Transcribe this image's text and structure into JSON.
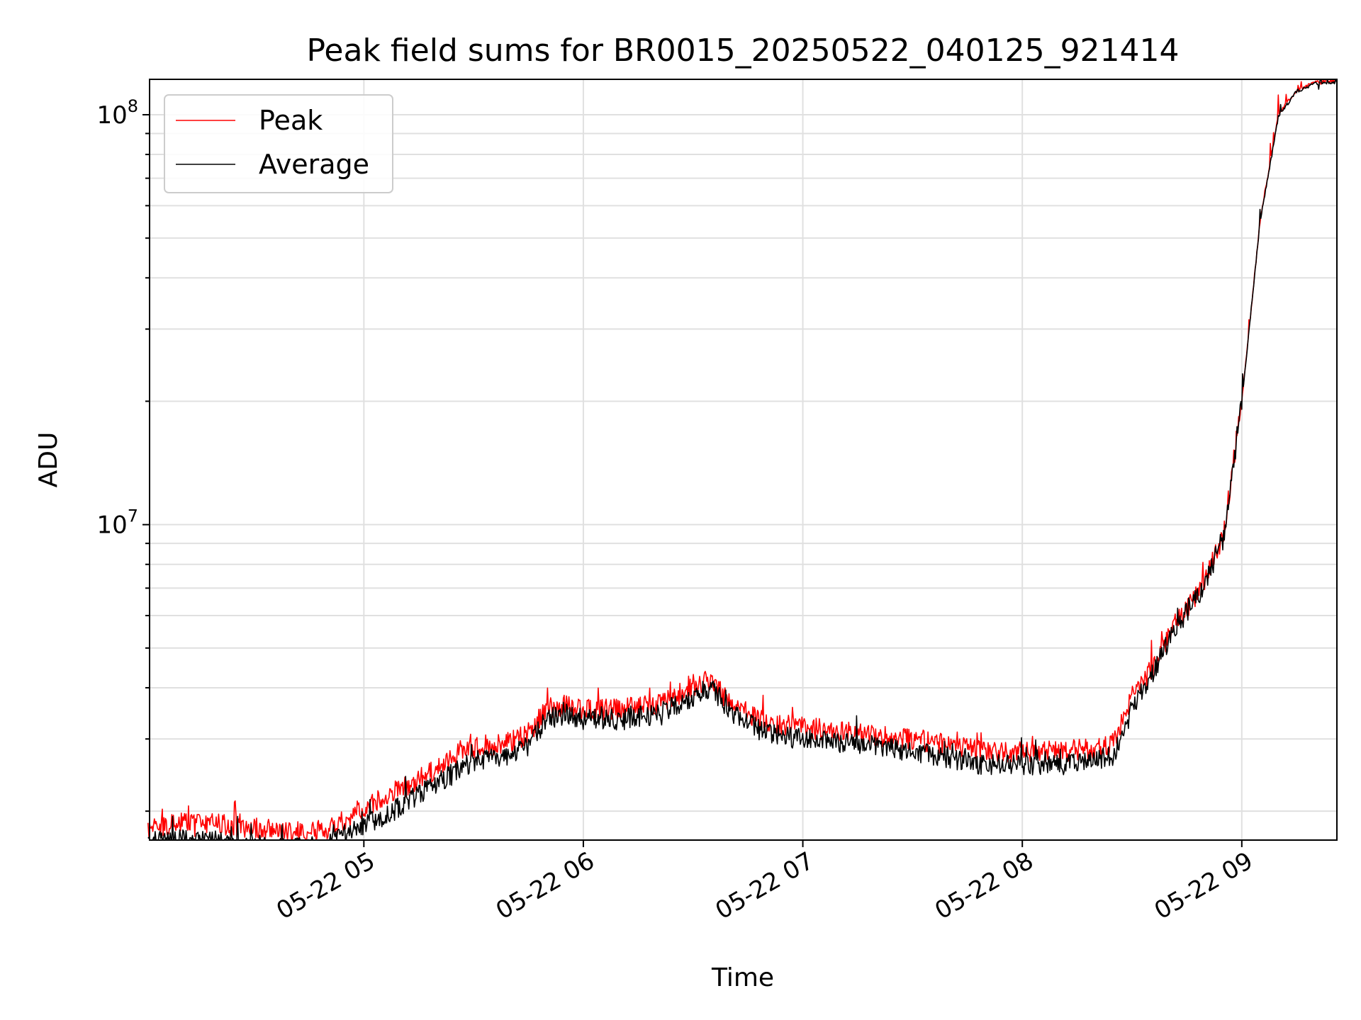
{
  "chart_data": {
    "type": "line",
    "title": "Peak field sums for BR0015_20250522_040125_921414",
    "xlabel": "Time",
    "ylabel": "ADU",
    "yscale": "log",
    "ylim": [
      1700000,
      122000000
    ],
    "xlim": [
      "2025-05-22T04:01:25",
      "2025-05-22T09:26:00"
    ],
    "x_tick_labels": [
      "05-22 05",
      "05-22 06",
      "05-22 07",
      "05-22 08",
      "05-22 09"
    ],
    "x_ticks": [
      "2025-05-22T05:00:00",
      "2025-05-22T06:00:00",
      "2025-05-22T07:00:00",
      "2025-05-22T08:00:00",
      "2025-05-22T09:00:00"
    ],
    "y_tick_labels": [
      {
        "base": "10",
        "exp": "7",
        "value": 10000000
      },
      {
        "base": "10",
        "exp": "8",
        "value": 100000000
      }
    ],
    "grid": true,
    "legend_placement": "top-left",
    "x": [
      "04:01",
      "04:10",
      "04:20",
      "04:30",
      "04:40",
      "04:50",
      "05:00",
      "05:10",
      "05:20",
      "05:30",
      "05:40",
      "05:45",
      "05:50",
      "05:55",
      "06:00",
      "06:10",
      "06:20",
      "06:30",
      "06:35",
      "06:40",
      "06:50",
      "07:00",
      "07:10",
      "07:20",
      "07:30",
      "07:40",
      "07:50",
      "08:00",
      "08:10",
      "08:20",
      "08:25",
      "08:30",
      "08:35",
      "08:40",
      "08:45",
      "08:50",
      "08:55",
      "09:00",
      "09:05",
      "09:10",
      "09:15",
      "09:20",
      "09:26"
    ],
    "series": [
      {
        "name": "Peak",
        "color": "#ff0000",
        "values": [
          1830000,
          1880000,
          1860000,
          1820000,
          1780000,
          1800000,
          2050000,
          2250000,
          2550000,
          2850000,
          2950000,
          3100000,
          3550000,
          3650000,
          3550000,
          3550000,
          3650000,
          4000000,
          4200000,
          3650000,
          3300000,
          3200000,
          3150000,
          3050000,
          3000000,
          2900000,
          2800000,
          2800000,
          2800000,
          2850000,
          2950000,
          3800000,
          4400000,
          5300000,
          6200000,
          7300000,
          9500000,
          20000000,
          55000000,
          100000000,
          115000000,
          120000000,
          121000000
        ]
      },
      {
        "name": "Average",
        "color": "#000000",
        "values": [
          1680000,
          1700000,
          1690000,
          1660000,
          1620000,
          1650000,
          1850000,
          2050000,
          2350000,
          2650000,
          2750000,
          2900000,
          3350000,
          3450000,
          3350000,
          3350000,
          3450000,
          3800000,
          4050000,
          3500000,
          3100000,
          3000000,
          2950000,
          2900000,
          2800000,
          2700000,
          2600000,
          2600000,
          2600000,
          2650000,
          2750000,
          3550000,
          4200000,
          5200000,
          6100000,
          7200000,
          9400000,
          19800000,
          55000000,
          99000000,
          114000000,
          119000000,
          120000000
        ]
      }
    ]
  }
}
